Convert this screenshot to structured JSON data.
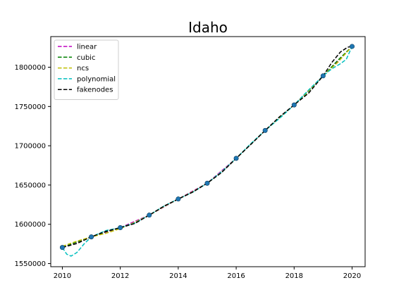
{
  "chart_data": {
    "type": "line",
    "title": "Idaho",
    "xlabel": "",
    "ylabel": "",
    "xlim": [
      2009.6,
      2020.45
    ],
    "ylim": [
      1546000,
      1839000
    ],
    "xticks": [
      2010,
      2012,
      2014,
      2016,
      2018,
      2020
    ],
    "xtick_labels": [
      "2010",
      "2012",
      "2014",
      "2016",
      "2018",
      "2020"
    ],
    "yticks": [
      1550000,
      1600000,
      1650000,
      1700000,
      1750000,
      1800000
    ],
    "ytick_labels": [
      "1550000",
      "1600000",
      "1650000",
      "1700000",
      "1750000",
      "1800000"
    ],
    "grid": false,
    "legend_position": "top-left",
    "points": {
      "x": [
        2010,
        2011,
        2012,
        2013,
        2014,
        2015,
        2016,
        2017,
        2018,
        2019,
        2020
      ],
      "y": [
        1570500,
        1584000,
        1595700,
        1611700,
        1632200,
        1652300,
        1684000,
        1719500,
        1752000,
        1789000,
        1826500
      ],
      "color": "#1f77b4"
    },
    "series": [
      {
        "name": "linear",
        "color": "#bf00bf",
        "x": [
          2010,
          2011,
          2012,
          2013,
          2014,
          2015,
          2016,
          2017,
          2018,
          2019,
          2020
        ],
        "y": [
          1570500,
          1584000,
          1595700,
          1611700,
          1632200,
          1652300,
          1684000,
          1719500,
          1752000,
          1789000,
          1826500
        ]
      },
      {
        "name": "cubic",
        "color": "#008000",
        "x": [
          2010,
          2010.5,
          2011,
          2011.5,
          2012,
          2012.5,
          2013,
          2013.5,
          2014,
          2014.5,
          2015,
          2015.5,
          2016,
          2016.5,
          2017,
          2017.5,
          2018,
          2018.5,
          2019,
          2019.5,
          2020
        ],
        "y": [
          1570500,
          1577500,
          1584000,
          1590500,
          1595700,
          1602000,
          1611700,
          1622500,
          1632200,
          1641000,
          1652300,
          1666500,
          1684000,
          1701800,
          1719500,
          1736200,
          1752000,
          1769500,
          1789000,
          1808500,
          1826500
        ]
      },
      {
        "name": "ncs",
        "color": "#bfbf00",
        "x": [
          2010,
          2010.5,
          2011,
          2011.5,
          2012,
          2012.5,
          2013,
          2013.5,
          2014,
          2014.5,
          2015,
          2015.5,
          2016,
          2016.5,
          2017,
          2017.5,
          2018,
          2018.5,
          2019,
          2019.5,
          2020
        ],
        "y": [
          1572000,
          1578500,
          1584000,
          1588500,
          1594500,
          1602500,
          1611700,
          1622500,
          1632200,
          1641500,
          1652300,
          1667000,
          1684000,
          1702000,
          1719500,
          1735500,
          1752000,
          1770000,
          1789000,
          1806000,
          1826500
        ]
      },
      {
        "name": "polynomial",
        "color": "#00bfbf",
        "x": [
          2010,
          2010.15,
          2010.3,
          2010.5,
          2010.75,
          2011,
          2011.5,
          2012,
          2012.5,
          2013,
          2013.5,
          2014,
          2014.5,
          2015,
          2015.5,
          2016,
          2016.5,
          2017,
          2017.5,
          2018,
          2018.5,
          2019,
          2019.3,
          2019.6,
          2019.8,
          2020
        ],
        "y": [
          1570500,
          1562000,
          1559500,
          1564000,
          1575000,
          1584000,
          1592000,
          1595700,
          1601500,
          1611700,
          1623000,
          1632200,
          1641000,
          1652300,
          1667000,
          1684000,
          1702500,
          1719500,
          1735000,
          1752000,
          1771000,
          1789000,
          1798000,
          1804500,
          1810000,
          1826500
        ]
      },
      {
        "name": "fakenodes",
        "color": "#000000",
        "x": [
          2010,
          2010.5,
          2011,
          2011.5,
          2012,
          2012.5,
          2013,
          2013.5,
          2014,
          2014.5,
          2015,
          2015.5,
          2016,
          2016.5,
          2017,
          2017.5,
          2018,
          2018.5,
          2019,
          2019.3,
          2019.6,
          2019.85,
          2020
        ],
        "y": [
          1570500,
          1575500,
          1584000,
          1591000,
          1595700,
          1601000,
          1611700,
          1623000,
          1632200,
          1641000,
          1652300,
          1666000,
          1684000,
          1701500,
          1719500,
          1737000,
          1752000,
          1767000,
          1789000,
          1806000,
          1819500,
          1825500,
          1826500
        ]
      }
    ]
  }
}
